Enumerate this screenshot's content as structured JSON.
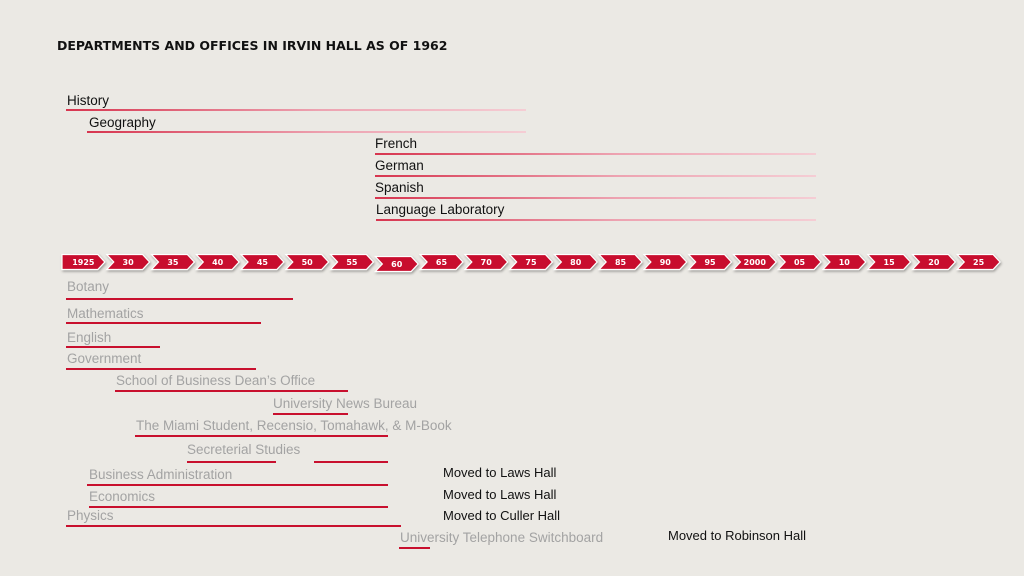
{
  "title": "DEPARTMENTS AND OFFICES IN IRVIN HALL AS OF 1962",
  "timeline": {
    "ticks": [
      "1925",
      "30",
      "35",
      "40",
      "45",
      "50",
      "55",
      "60",
      "65",
      "70",
      "75",
      "80",
      "85",
      "90",
      "95",
      "2000",
      "05",
      "10",
      "15",
      "20",
      "25"
    ],
    "highlighted": "60",
    "color": "#c8102e"
  },
  "current": [
    {
      "id": "history",
      "label": "History"
    },
    {
      "id": "geography",
      "label": "Geography"
    },
    {
      "id": "french",
      "label": "French"
    },
    {
      "id": "german",
      "label": "German"
    },
    {
      "id": "spanish",
      "label": "Spanish"
    },
    {
      "id": "language-laboratory",
      "label": "Language Laboratory"
    }
  ],
  "former": [
    {
      "id": "botany",
      "label": "Botany"
    },
    {
      "id": "mathematics",
      "label": "Mathematics"
    },
    {
      "id": "english",
      "label": "English"
    },
    {
      "id": "government",
      "label": "Government"
    },
    {
      "id": "business-dean",
      "label": "School of Business Dean’s Office"
    },
    {
      "id": "news-bureau",
      "label": "University News Bureau"
    },
    {
      "id": "miami-student",
      "label": "The Miami Student, Recensio, Tomahawk, & M-Book"
    },
    {
      "id": "secretarial",
      "label": "Secreterial Studies"
    },
    {
      "id": "business-admin",
      "label": "Business Administration"
    },
    {
      "id": "economics",
      "label": "Economics"
    },
    {
      "id": "physics",
      "label": "Physics"
    },
    {
      "id": "switchboard",
      "label": "University Telephone Switchboard"
    }
  ],
  "notes": [
    {
      "id": "business-admin",
      "text": "Moved to Laws Hall"
    },
    {
      "id": "economics",
      "text": "Moved to Laws Hall"
    },
    {
      "id": "physics",
      "text": "Moved to Culler Hall"
    },
    {
      "id": "switchboard",
      "text": "Moved to Robinson Hall"
    }
  ]
}
